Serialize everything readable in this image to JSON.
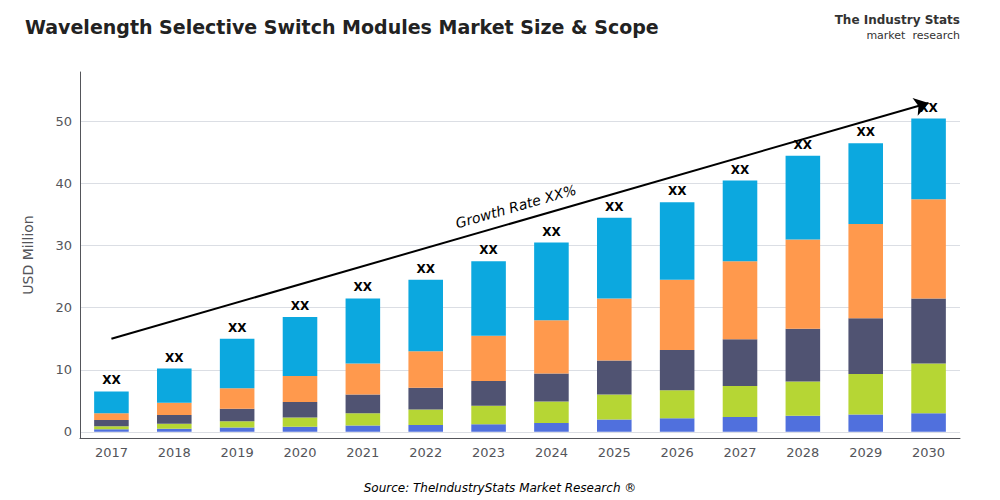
{
  "chart_data": {
    "type": "bar",
    "stacked": true,
    "title": "Wavelength Selective Switch Modules Market Size & Scope",
    "ylabel": "USD Million",
    "source": "Source: TheIndustryStats Market Research ®",
    "logo_text": [
      "The Industry Stats",
      "market  research"
    ],
    "categories": [
      "2017",
      "2018",
      "2019",
      "2020",
      "2021",
      "2022",
      "2023",
      "2024",
      "2025",
      "2026",
      "2027",
      "2028",
      "2029",
      "2030"
    ],
    "series": [
      {
        "values": [
          0.4,
          0.5,
          0.7,
          0.8,
          1.0,
          1.1,
          1.2,
          1.4,
          2.0,
          2.2,
          2.4,
          2.6,
          2.8,
          3.0
        ]
      },
      {
        "values": [
          0.5,
          0.8,
          1.0,
          1.5,
          2.0,
          2.5,
          3.0,
          3.5,
          4.0,
          4.5,
          5.0,
          5.5,
          6.5,
          8.0
        ]
      },
      {
        "values": [
          1.0,
          1.4,
          2.0,
          2.5,
          3.0,
          3.5,
          4.0,
          4.5,
          5.5,
          6.5,
          7.5,
          8.5,
          9.0,
          10.5
        ]
      },
      {
        "values": [
          1.1,
          2.0,
          3.3,
          4.2,
          5.0,
          5.9,
          7.3,
          8.6,
          10.0,
          11.3,
          12.6,
          14.4,
          15.2,
          16.0
        ]
      },
      {
        "values": [
          3.5,
          5.5,
          8.0,
          9.5,
          10.5,
          11.5,
          12.0,
          12.5,
          13.0,
          12.5,
          13.0,
          13.5,
          13.0,
          13.0
        ],
        "value_labels": [
          "XX",
          "XX",
          "XX",
          "XX",
          "XX",
          "XX",
          "XX",
          "XX",
          "XX",
          "XX",
          "XX",
          "XX",
          "XX",
          "XX"
        ]
      }
    ],
    "annotations": [
      {
        "text": "Growth Rate XX%",
        "arrow_from": [
          "2017",
          15
        ],
        "arrow_to": [
          "2030",
          53
        ]
      }
    ],
    "ylim": [
      -1,
      58
    ],
    "yticks": [
      0,
      10,
      20,
      30,
      40,
      50
    ],
    "grid": true
  }
}
